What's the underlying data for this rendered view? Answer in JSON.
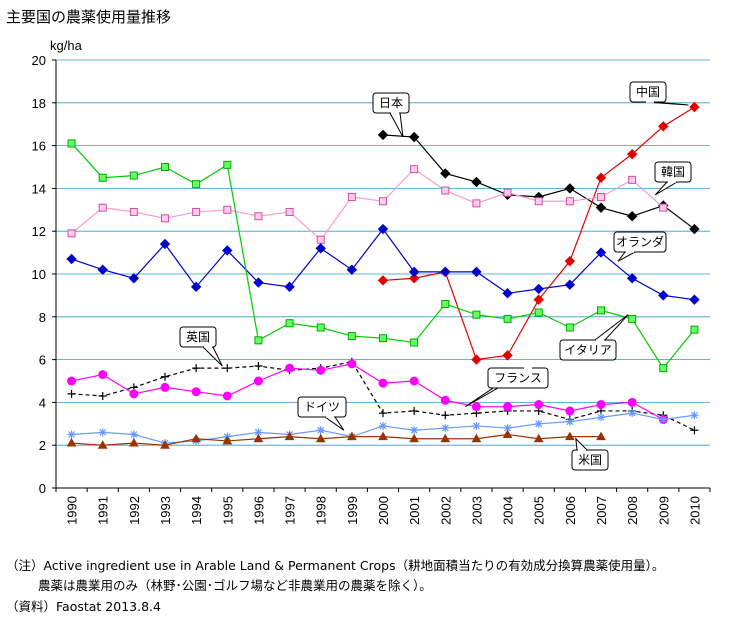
{
  "title": "主要国の農薬使用量推移",
  "notes": {
    "note1": "（注）Active ingredient use in Arable Land & Permanent Crops（耕地面積当たりの有効成分換算農薬使用量）。",
    "note2": "農薬は農業用のみ（林野･公園･ゴルフ場など非農業用の農薬を除く）。",
    "note3": "（資料）Faostat 2013.8.4"
  },
  "chart_data": {
    "type": "line",
    "ylabel": "kg/ha",
    "ylim": [
      0,
      20
    ],
    "yticks": [
      0,
      2,
      4,
      6,
      8,
      10,
      12,
      14,
      16,
      18,
      20
    ],
    "x": [
      "1990",
      "1991",
      "1992",
      "1993",
      "1994",
      "1995",
      "1996",
      "1997",
      "1998",
      "1999",
      "2000",
      "2001",
      "2002",
      "2003",
      "2004",
      "2005",
      "2006",
      "2007",
      "2008",
      "2009",
      "2010"
    ],
    "grid": true,
    "series": [
      {
        "name": "日本",
        "color": "#000000",
        "marker": "diamond",
        "dash": false,
        "values": [
          null,
          null,
          null,
          null,
          null,
          null,
          null,
          null,
          null,
          null,
          16.5,
          16.4,
          14.7,
          14.3,
          13.7,
          13.6,
          14.0,
          13.1,
          12.7,
          13.2,
          12.1
        ]
      },
      {
        "name": "中国",
        "color": "#e00000",
        "marker": "diamond",
        "dash": false,
        "values": [
          null,
          null,
          null,
          null,
          null,
          null,
          null,
          null,
          null,
          null,
          9.7,
          9.8,
          10.1,
          6.0,
          6.2,
          8.8,
          10.6,
          14.5,
          15.6,
          16.9,
          17.8
        ]
      },
      {
        "name": "韓国",
        "color": "#ff99cc",
        "marker": "square",
        "markerFill": "#ffccee",
        "markerStroke": "#d0509a",
        "dash": false,
        "values": [
          11.9,
          13.1,
          12.9,
          12.6,
          12.9,
          13.0,
          12.7,
          12.9,
          11.6,
          13.6,
          13.4,
          14.9,
          13.9,
          13.3,
          13.8,
          13.4,
          13.4,
          13.6,
          14.4,
          13.1,
          null
        ]
      },
      {
        "name": "オランダ",
        "color": "#0000cc",
        "marker": "diamond",
        "dash": false,
        "values": [
          10.7,
          10.2,
          9.8,
          11.4,
          9.4,
          11.1,
          9.6,
          9.4,
          11.2,
          10.2,
          12.1,
          10.1,
          10.1,
          10.1,
          9.1,
          9.3,
          9.5,
          11.0,
          9.8,
          9.0,
          8.8
        ]
      },
      {
        "name": "イタリア",
        "color": "#00cc00",
        "marker": "square",
        "markerFill": "#66ff66",
        "markerStroke": "#00aa00",
        "dash": false,
        "values": [
          16.1,
          14.5,
          14.6,
          15.0,
          14.2,
          15.1,
          6.9,
          7.7,
          7.5,
          7.1,
          7.0,
          6.8,
          8.6,
          8.1,
          7.9,
          8.2,
          7.5,
          8.3,
          7.9,
          5.6,
          7.4
        ]
      },
      {
        "name": "英国",
        "color": "#000000",
        "marker": "plus",
        "dash": true,
        "values": [
          4.4,
          4.3,
          4.7,
          5.2,
          5.6,
          5.6,
          5.7,
          5.5,
          5.6,
          5.9,
          3.5,
          3.6,
          3.4,
          3.5,
          3.6,
          3.6,
          3.2,
          3.6,
          3.6,
          3.4,
          2.7
        ]
      },
      {
        "name": "フランス",
        "color": "#ff00ff",
        "marker": "circle",
        "dash": false,
        "values": [
          5.0,
          5.3,
          4.4,
          4.7,
          4.5,
          4.3,
          5.0,
          5.6,
          5.5,
          5.8,
          4.9,
          5.0,
          4.1,
          3.8,
          3.8,
          3.9,
          3.6,
          3.9,
          4.0,
          3.2,
          null
        ]
      },
      {
        "name": "ドイツ",
        "color": "#6699ff",
        "marker": "star",
        "dash": false,
        "values": [
          2.5,
          2.6,
          2.5,
          2.1,
          2.2,
          2.4,
          2.6,
          2.5,
          2.7,
          2.4,
          2.9,
          2.7,
          2.8,
          2.9,
          2.8,
          3.0,
          3.1,
          3.3,
          3.5,
          3.2,
          3.4
        ]
      },
      {
        "name": "米国",
        "color": "#993300",
        "marker": "triangle",
        "dash": false,
        "values": [
          2.1,
          2.0,
          2.1,
          2.0,
          2.3,
          2.2,
          2.3,
          2.4,
          2.3,
          2.4,
          2.4,
          2.3,
          2.3,
          2.3,
          2.5,
          2.3,
          2.4,
          2.4,
          null,
          null,
          null
        ]
      }
    ]
  }
}
